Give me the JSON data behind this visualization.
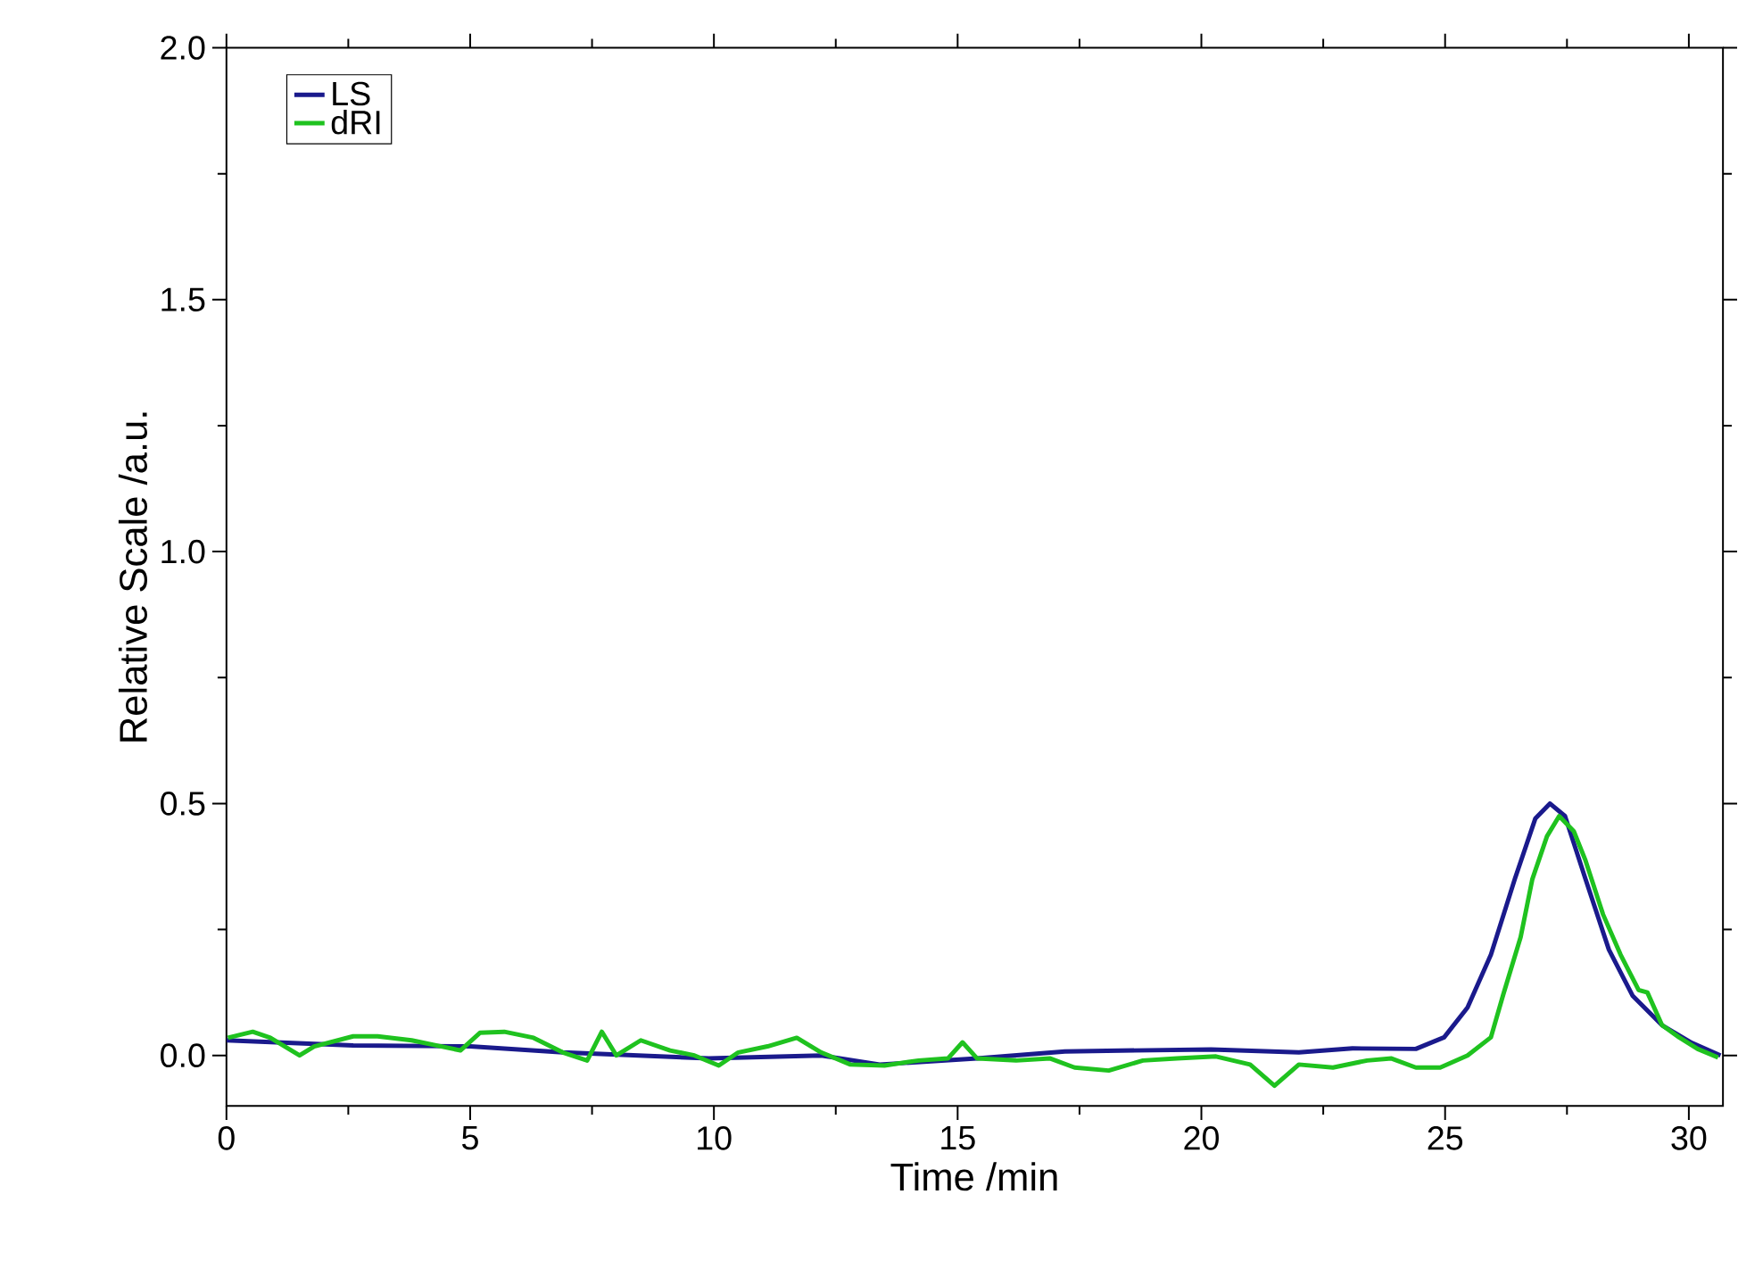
{
  "chart_data": {
    "type": "line",
    "xlabel": "Time /min",
    "ylabel": "Relative Scale /a.u.",
    "xlim": [
      0,
      30.7
    ],
    "ylim": [
      -0.1,
      2.0
    ],
    "xticks": [
      0,
      5,
      10,
      15,
      20,
      25,
      30
    ],
    "yticks": [
      {
        "value": 0,
        "label": "0.0"
      },
      {
        "value": 0.5,
        "label": "0.5"
      },
      {
        "value": 1,
        "label": "1.0"
      },
      {
        "value": 1.5,
        "label": "1.5"
      },
      {
        "value": 2,
        "label": "2.0"
      }
    ],
    "grid": false,
    "legend": "top left",
    "marker": "none",
    "line_style": "solid",
    "series": [
      {
        "name": "LS",
        "color": "#1a1a8c",
        "x": [
          0,
          2.6,
          5.0,
          6.9,
          9.9,
          12.2,
          13.4,
          15.4,
          17.2,
          20.2,
          22.0,
          23.1,
          24.4,
          24.98,
          25.46,
          25.94,
          26.43,
          26.85,
          27.15,
          27.46,
          27.88,
          28.36,
          28.85,
          29.45,
          30.06,
          30.65
        ],
        "values": [
          0.03,
          0.02,
          0.018,
          0.006,
          -0.006,
          0.0,
          -0.018,
          -0.006,
          0.008,
          0.012,
          0.006,
          0.014,
          0.013,
          0.036,
          0.095,
          0.2,
          0.35,
          0.47,
          0.5,
          0.475,
          0.35,
          0.21,
          0.118,
          0.06,
          0.025,
          0.0
        ]
      },
      {
        "name": "dRI",
        "color": "#1fc21f",
        "x": [
          0.03,
          0.54,
          0.9,
          1.5,
          1.8,
          2.6,
          3.1,
          3.8,
          4.3,
          4.8,
          5.2,
          5.7,
          6.3,
          6.9,
          7.4,
          7.7,
          8.0,
          8.5,
          9.1,
          9.6,
          10.1,
          10.5,
          11.1,
          11.7,
          12.2,
          12.8,
          13.5,
          14.2,
          14.8,
          15.1,
          15.4,
          16.2,
          16.9,
          17.4,
          18.1,
          18.8,
          19.5,
          20.3,
          21.0,
          21.5,
          22.0,
          22.7,
          23.4,
          23.9,
          24.4,
          24.9,
          25.46,
          25.94,
          26.19,
          26.55,
          26.79,
          27.09,
          27.34,
          27.64,
          27.88,
          28.24,
          28.6,
          28.97,
          29.15,
          29.45,
          29.8,
          30.18,
          30.6
        ],
        "values": [
          0.035,
          0.047,
          0.035,
          0.0,
          0.018,
          0.038,
          0.038,
          0.03,
          0.02,
          0.01,
          0.045,
          0.047,
          0.035,
          0.006,
          -0.01,
          0.047,
          0.0,
          0.03,
          0.01,
          0.0,
          -0.02,
          0.006,
          0.018,
          0.035,
          0.006,
          -0.018,
          -0.02,
          -0.01,
          -0.006,
          0.026,
          -0.006,
          -0.01,
          -0.006,
          -0.024,
          -0.03,
          -0.01,
          -0.006,
          -0.002,
          -0.018,
          -0.06,
          -0.018,
          -0.024,
          -0.01,
          -0.006,
          -0.024,
          -0.024,
          0.0,
          0.036,
          0.12,
          0.235,
          0.35,
          0.435,
          0.475,
          0.445,
          0.387,
          0.28,
          0.2,
          0.13,
          0.125,
          0.06,
          0.036,
          0.013,
          -0.004
        ]
      }
    ]
  }
}
